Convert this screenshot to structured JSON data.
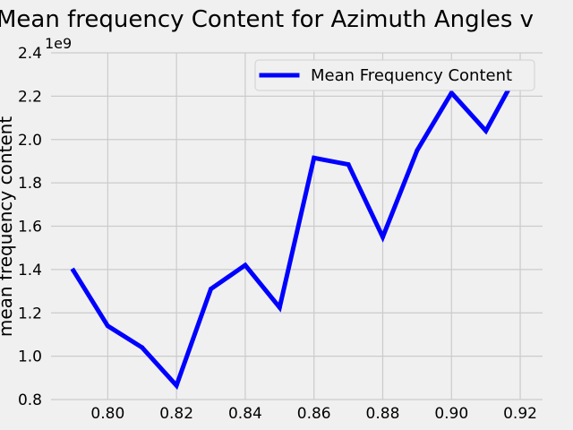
{
  "chart_data": {
    "type": "line",
    "title": "Mean frequency Content for Azimuth Angles v",
    "xlabel": "",
    "ylabel": "mean frequency content",
    "y_multiplier_label": "1e9",
    "xlim": [
      0.7835,
      0.9265
    ],
    "ylim": [
      0.8,
      2.4
    ],
    "x_ticks": [
      0.8,
      0.82,
      0.84,
      0.86,
      0.88,
      0.9,
      0.92
    ],
    "x_tick_labels": [
      "0.80",
      "0.82",
      "0.84",
      "0.86",
      "0.88",
      "0.90",
      "0.92"
    ],
    "y_ticks": [
      0.8,
      1.0,
      1.2,
      1.4,
      1.6,
      1.8,
      2.0,
      2.2,
      2.4
    ],
    "y_tick_labels": [
      "0.8",
      "1.0",
      "1.2",
      "1.4",
      "1.6",
      "1.8",
      "2.0",
      "2.2",
      "2.4"
    ],
    "grid": true,
    "legend_position": "top-right",
    "series": [
      {
        "name": "Mean Frequency Content",
        "color": "#0000ff",
        "x": [
          0.79,
          0.8,
          0.81,
          0.82,
          0.83,
          0.84,
          0.85,
          0.86,
          0.87,
          0.88,
          0.89,
          0.9,
          0.91,
          0.92
        ],
        "y": [
          1.395,
          1.14,
          1.04,
          0.865,
          1.31,
          1.42,
          1.225,
          1.915,
          1.885,
          1.55,
          1.95,
          2.215,
          2.04,
          2.33
        ]
      }
    ]
  }
}
